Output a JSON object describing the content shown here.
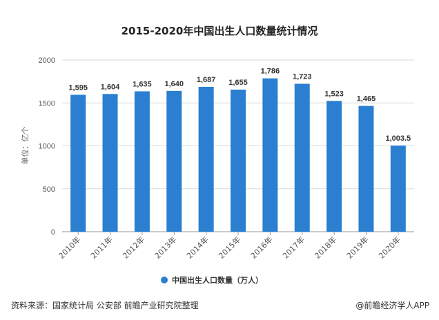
{
  "chart_data": {
    "type": "bar",
    "title": "2015-2020年中国出生人口数量统计情况",
    "categories": [
      "2010年",
      "2011年",
      "2012年",
      "2013年",
      "2014年",
      "2015年",
      "2016年",
      "2017年",
      "2018年",
      "2019年",
      "2020年"
    ],
    "values": [
      1595,
      1604,
      1635,
      1640,
      1687,
      1655,
      1786,
      1723,
      1523,
      1465,
      1003.5
    ],
    "data_labels": [
      "1,595",
      "1,604",
      "1,635",
      "1,640",
      "1,687",
      "1,655",
      "1,786",
      "1,723",
      "1,523",
      "1,465",
      "1,003.5"
    ],
    "ylabel": "单位：亿个",
    "xlabel": "",
    "ylim": [
      0,
      2000
    ],
    "yticks": [
      "0",
      "500",
      "1000",
      "1500",
      "2000"
    ],
    "grid": true,
    "legend": {
      "entries": [
        "中国出生人口数量（万人）"
      ],
      "placement": "bottom-center"
    },
    "colors": {
      "bar": "#2a7fd0",
      "grid": "#d9d9d9"
    }
  },
  "footer": {
    "source": "资料来源：国家统计局 公安部 前瞻产业研究院整理",
    "watermark": "@前瞻经济学人APP"
  }
}
